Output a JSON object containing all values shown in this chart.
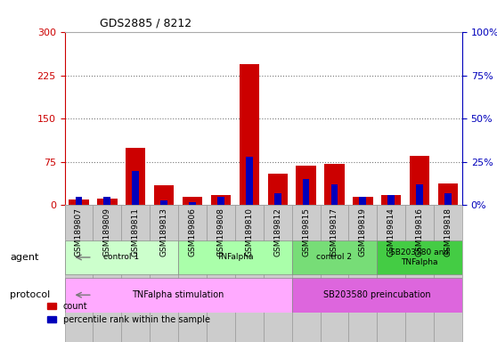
{
  "title": "GDS2885 / 8212",
  "samples": [
    "GSM189807",
    "GSM189809",
    "GSM189811",
    "GSM189813",
    "GSM189806",
    "GSM189808",
    "GSM189810",
    "GSM189812",
    "GSM189815",
    "GSM189817",
    "GSM189819",
    "GSM189814",
    "GSM189816",
    "GSM189818"
  ],
  "count": [
    10,
    12,
    100,
    35,
    15,
    18,
    245,
    55,
    68,
    72,
    15,
    18,
    85,
    37
  ],
  "percentile": [
    5,
    5,
    20,
    3,
    2,
    5,
    28,
    7,
    15,
    12,
    5,
    6,
    12,
    7
  ],
  "ylim_left": [
    0,
    300
  ],
  "ylim_right": [
    0,
    100
  ],
  "yticks_left": [
    0,
    75,
    150,
    225,
    300
  ],
  "yticks_right": [
    0,
    25,
    50,
    75,
    100
  ],
  "count_color": "#cc0000",
  "percentile_color": "#0000bb",
  "bar_bg_color": "#cccccc",
  "bar_width": 0.7,
  "agent_groups": [
    {
      "label": "control 1",
      "start": 0,
      "end": 4,
      "color": "#ccffcc"
    },
    {
      "label": "TNFalpha",
      "start": 4,
      "end": 8,
      "color": "#aaffaa"
    },
    {
      "label": "control 2",
      "start": 8,
      "end": 11,
      "color": "#77dd77"
    },
    {
      "label": "SB203580 and\nTNFalpha",
      "start": 11,
      "end": 14,
      "color": "#44cc44"
    }
  ],
  "protocol_groups": [
    {
      "label": "TNFalpha stimulation",
      "start": 0,
      "end": 8,
      "color": "#ffaaff"
    },
    {
      "label": "SB203580 preincubation",
      "start": 8,
      "end": 14,
      "color": "#dd66dd"
    }
  ],
  "dotted_line_color": "#777777",
  "bg_color": "#ffffff",
  "left_axis_color": "#cc0000",
  "right_axis_color": "#0000bb"
}
